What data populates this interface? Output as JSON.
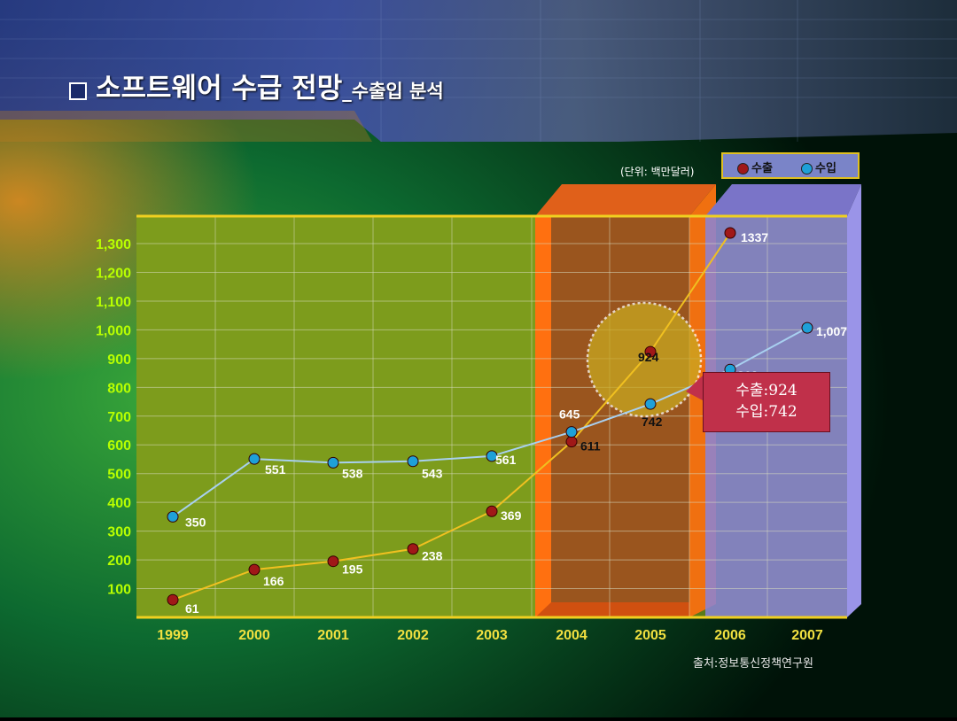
{
  "title": {
    "main": "소프트웨어 수급 전망",
    "sub": "_수출입 분석"
  },
  "unit_label": "(단위: 백만달러)",
  "source_label": "출처:정보통신정책연구원",
  "legend": [
    {
      "label": "수출",
      "color": "#a01818"
    },
    {
      "label": "수입",
      "color": "#1ea0d8"
    }
  ],
  "callout": {
    "line1": "수출:924",
    "line2": "수입:742"
  },
  "chart_data": {
    "type": "line",
    "categories": [
      "1999",
      "2000",
      "2001",
      "2002",
      "2003",
      "2004",
      "2005",
      "2006",
      "2007"
    ],
    "ylim": [
      0,
      1300
    ],
    "yticks": [
      "100",
      "200",
      "300",
      "400",
      "500",
      "600",
      "700",
      "800",
      "900",
      "1,000",
      "1,100",
      "1,200",
      "1,300"
    ],
    "grid": true,
    "legend_position": "top-right",
    "series": [
      {
        "name": "수출",
        "color": "#f0c020",
        "marker": "#a01818",
        "values": [
          61,
          166,
          195,
          238,
          369,
          611,
          924,
          1337,
          null
        ],
        "labels": [
          "61",
          "166",
          "195",
          "238",
          "369",
          "611",
          "924",
          "1337",
          ""
        ]
      },
      {
        "name": "수입",
        "color": "#a8d0f0",
        "marker": "#1ea0d8",
        "values": [
          350,
          551,
          538,
          543,
          561,
          645,
          742,
          862,
          1007
        ],
        "labels": [
          "350",
          "551",
          "538",
          "543",
          "561",
          "645",
          "742",
          "862",
          "1,007"
        ]
      }
    ]
  }
}
